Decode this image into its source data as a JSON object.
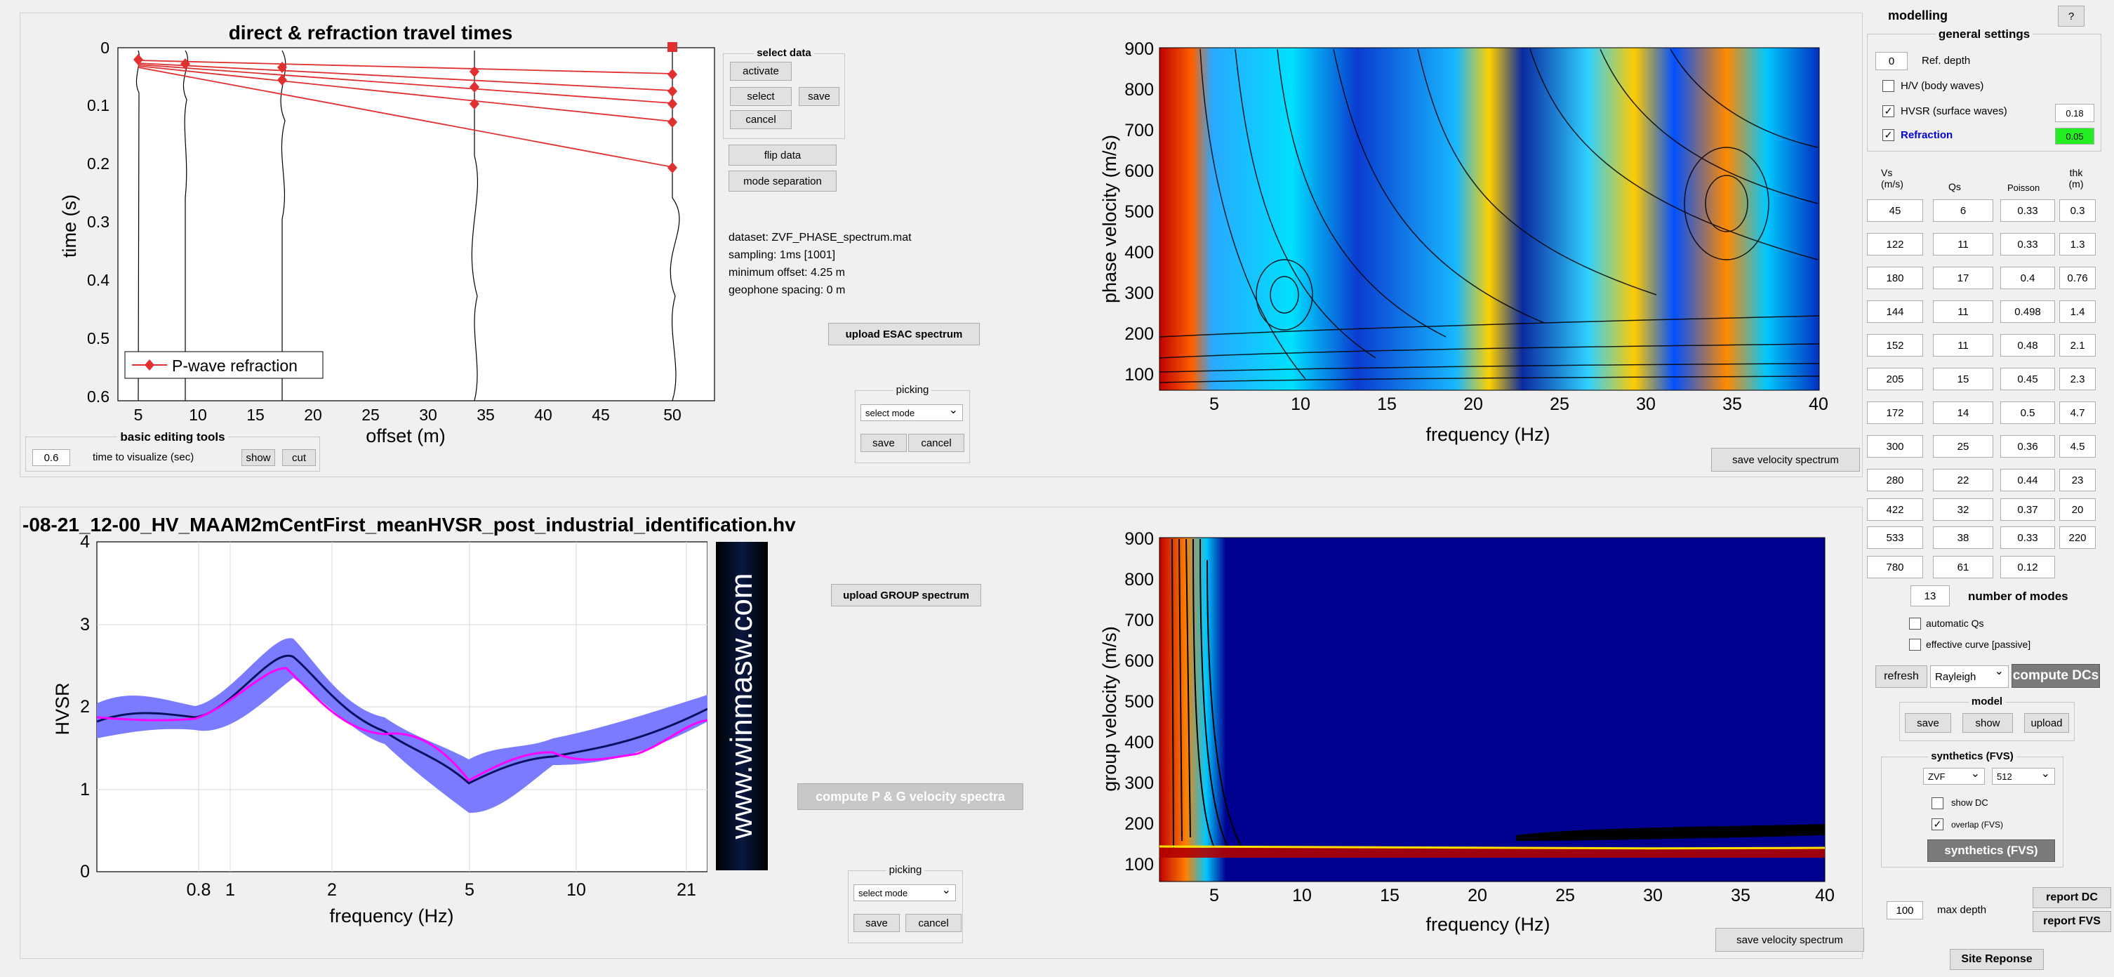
{
  "travel": {
    "title": "direct & refraction travel times",
    "xlabel": "offset (m)",
    "ylabel": "time (s)",
    "xticks": [
      "5",
      "10",
      "15",
      "20",
      "25",
      "30",
      "35",
      "40",
      "45",
      "50"
    ],
    "yticks": [
      "0",
      "0.1",
      "0.2",
      "0.3",
      "0.4",
      "0.5",
      "0.6"
    ],
    "legend": "P-wave refraction"
  },
  "basic_editing": {
    "title": "basic editing tools",
    "value": "0.6",
    "label": "time to visualize (sec)",
    "show": "show",
    "cut": "cut"
  },
  "select_data": {
    "title": "select data",
    "activate": "activate",
    "select": "select",
    "save": "save",
    "cancel": "cancel"
  },
  "flip_data": "flip data",
  "mode_separation": "mode separation",
  "dataset_info": [
    "dataset: ZVF_PHASE_spectrum.mat",
    "sampling: 1ms [1001]",
    "minimum offset: 4.25 m",
    "geophone spacing: 0 m"
  ],
  "upload_esac": "upload ESAC spectrum",
  "picking_top": {
    "title": "picking",
    "mode": "select mode",
    "save": "save",
    "cancel": "cancel"
  },
  "phase": {
    "ylabel": "phase velocity (m/s)",
    "xlabel": "frequency (Hz)",
    "yticks": [
      "900",
      "800",
      "700",
      "600",
      "500",
      "400",
      "300",
      "200",
      "100"
    ],
    "xticks": [
      "5",
      "10",
      "15",
      "20",
      "25",
      "30",
      "35",
      "40"
    ]
  },
  "save_velocity_top": "save velocity spectrum",
  "hv": {
    "title": "-08-21_12-00_HV_MAAM2mCentFirst_meanHVSR_post_industrial_identification.hv",
    "ylabel": "HVSR",
    "xlabel": "frequency (Hz)",
    "yticks": [
      "4",
      "3",
      "2",
      "1",
      "0"
    ],
    "xticks": [
      "0.8",
      "1",
      "2",
      "5",
      "10",
      "21"
    ],
    "watermark": "www.winmasw.com"
  },
  "upload_group": "upload GROUP spectrum",
  "compute_pg": "compute P & G velocity spectra",
  "picking_bottom": {
    "title": "picking",
    "mode": "select mode",
    "save": "save",
    "cancel": "cancel"
  },
  "group": {
    "ylabel": "group velocity (m/s)",
    "xlabel": "frequency (Hz)",
    "yticks": [
      "900",
      "800",
      "700",
      "600",
      "500",
      "400",
      "300",
      "200",
      "100"
    ],
    "xticks": [
      "5",
      "10",
      "15",
      "20",
      "25",
      "30",
      "35",
      "40"
    ]
  },
  "save_velocity_bottom": "save velocity spectrum",
  "modelling": {
    "title": "modelling",
    "help": "?",
    "general_settings": "general settings",
    "ref_depth_value": "0",
    "ref_depth_label": "Ref. depth",
    "hv_body": "H/V (body waves)",
    "hvsr_surface": "HVSR (surface waves)",
    "hvsr_weight": "0.18",
    "refraction": "Refraction",
    "refraction_weight": "0.05",
    "col_vs": "Vs (m/s)",
    "col_qs": "Qs",
    "col_poisson": "Poisson",
    "col_thk": "thk (m)",
    "rows": [
      {
        "vs": "45",
        "qs": "6",
        "poisson": "0.33",
        "thk": "0.3"
      },
      {
        "vs": "122",
        "qs": "11",
        "poisson": "0.33",
        "thk": "1.3"
      },
      {
        "vs": "180",
        "qs": "17",
        "poisson": "0.4",
        "thk": "0.76"
      },
      {
        "vs": "144",
        "qs": "11",
        "poisson": "0.498",
        "thk": "1.4"
      },
      {
        "vs": "152",
        "qs": "11",
        "poisson": "0.48",
        "thk": "2.1"
      },
      {
        "vs": "205",
        "qs": "15",
        "poisson": "0.45",
        "thk": "2.3"
      },
      {
        "vs": "172",
        "qs": "14",
        "poisson": "0.5",
        "thk": "4.7"
      },
      {
        "vs": "300",
        "qs": "25",
        "poisson": "0.36",
        "thk": "4.5"
      },
      {
        "vs": "280",
        "qs": "22",
        "poisson": "0.44",
        "thk": "23"
      },
      {
        "vs": "422",
        "qs": "32",
        "poisson": "0.37",
        "thk": "20"
      },
      {
        "vs": "533",
        "qs": "38",
        "poisson": "0.33",
        "thk": "220"
      },
      {
        "vs": "780",
        "qs": "61",
        "poisson": "0.12",
        "thk": ""
      }
    ],
    "num_modes_value": "13",
    "num_modes_label": "number of modes",
    "automatic_qs": "automatic Qs",
    "effective_curve": "effective curve [passive]",
    "refresh": "refresh",
    "wave_type": "Rayleigh",
    "compute_dcs": "compute DCs",
    "model_title": "model",
    "model_save": "save",
    "model_show": "show",
    "model_upload": "upload",
    "synthetics_title": "synthetics (FVS)",
    "synth_component": "ZVF",
    "synth_samples": "512",
    "show_dc": "show DC",
    "overlap": "overlap (FVS)",
    "synthetics_btn": "synthetics (FVS)",
    "max_depth_value": "100",
    "max_depth_label": "max depth",
    "report_dc": "report DC",
    "report_fvs": "report FVS",
    "site_response": "Site Reponse"
  },
  "colors": {
    "refraction_line": "#e03030",
    "hv_band": "#7b7bff",
    "hv_mean": "#0a1060",
    "hv_model": "#ff00ff",
    "green": "#22ee22",
    "accent_blue": "#0000dd"
  }
}
